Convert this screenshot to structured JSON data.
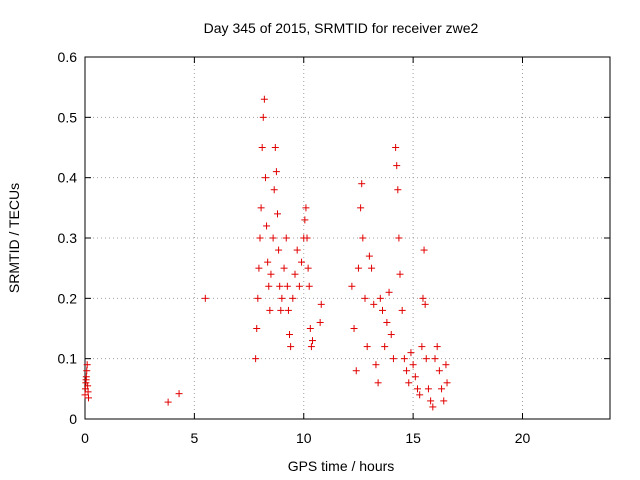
{
  "chart_data": {
    "type": "scatter",
    "title": "Day 345 of 2015, SRMTID for receiver zwe2",
    "xlabel": "GPS time / hours",
    "ylabel": "SRMTID / TECUs",
    "xlim": [
      0,
      24
    ],
    "ylim": [
      0,
      0.6
    ],
    "x_ticks": [
      0,
      5,
      10,
      15,
      20
    ],
    "y_ticks": [
      0,
      0.1,
      0.2,
      0.3,
      0.4,
      0.5,
      0.6
    ],
    "x_tick_labels": [
      "0",
      "5",
      "10",
      "15",
      "20"
    ],
    "y_tick_labels": [
      "0",
      "0.1",
      "0.2",
      "0.3",
      "0.4",
      "0.5",
      "0.6"
    ],
    "grid": true,
    "marker": "+",
    "series": [
      {
        "name": "SRMTID",
        "color": "#e00000",
        "points": [
          [
            0.0,
            0.04
          ],
          [
            0.02,
            0.05
          ],
          [
            0.04,
            0.06
          ],
          [
            0.06,
            0.07
          ],
          [
            0.08,
            0.08
          ],
          [
            0.1,
            0.09
          ],
          [
            0.12,
            0.055
          ],
          [
            0.14,
            0.045
          ],
          [
            0.16,
            0.035
          ],
          [
            0.05,
            0.065
          ],
          [
            3.8,
            0.028
          ],
          [
            4.3,
            0.042
          ],
          [
            5.5,
            0.2
          ],
          [
            7.8,
            0.1
          ],
          [
            7.85,
            0.15
          ],
          [
            7.9,
            0.2
          ],
          [
            7.95,
            0.25
          ],
          [
            8.0,
            0.3
          ],
          [
            8.05,
            0.35
          ],
          [
            8.1,
            0.45
          ],
          [
            8.15,
            0.5
          ],
          [
            8.2,
            0.53
          ],
          [
            8.25,
            0.4
          ],
          [
            8.3,
            0.32
          ],
          [
            8.35,
            0.26
          ],
          [
            8.4,
            0.22
          ],
          [
            8.45,
            0.18
          ],
          [
            8.5,
            0.24
          ],
          [
            8.6,
            0.3
          ],
          [
            8.65,
            0.38
          ],
          [
            8.7,
            0.45
          ],
          [
            8.75,
            0.41
          ],
          [
            8.8,
            0.34
          ],
          [
            8.85,
            0.28
          ],
          [
            8.9,
            0.22
          ],
          [
            8.95,
            0.18
          ],
          [
            9.0,
            0.2
          ],
          [
            9.1,
            0.25
          ],
          [
            9.2,
            0.3
          ],
          [
            9.25,
            0.22
          ],
          [
            9.3,
            0.18
          ],
          [
            9.35,
            0.14
          ],
          [
            9.4,
            0.12
          ],
          [
            9.5,
            0.2
          ],
          [
            9.6,
            0.24
          ],
          [
            9.7,
            0.28
          ],
          [
            9.8,
            0.22
          ],
          [
            9.9,
            0.26
          ],
          [
            10.0,
            0.3
          ],
          [
            10.05,
            0.33
          ],
          [
            10.1,
            0.35
          ],
          [
            10.15,
            0.3
          ],
          [
            10.2,
            0.25
          ],
          [
            10.25,
            0.22
          ],
          [
            10.3,
            0.15
          ],
          [
            10.35,
            0.12
          ],
          [
            10.4,
            0.13
          ],
          [
            10.8,
            0.19
          ],
          [
            10.75,
            0.16
          ],
          [
            12.2,
            0.22
          ],
          [
            12.3,
            0.15
          ],
          [
            12.4,
            0.08
          ],
          [
            12.5,
            0.25
          ],
          [
            12.6,
            0.35
          ],
          [
            12.65,
            0.39
          ],
          [
            12.7,
            0.3
          ],
          [
            12.8,
            0.2
          ],
          [
            12.9,
            0.12
          ],
          [
            13.0,
            0.27
          ],
          [
            13.1,
            0.25
          ],
          [
            13.2,
            0.19
          ],
          [
            13.3,
            0.09
          ],
          [
            13.4,
            0.06
          ],
          [
            13.5,
            0.2
          ],
          [
            13.6,
            0.18
          ],
          [
            13.7,
            0.12
          ],
          [
            13.8,
            0.16
          ],
          [
            13.9,
            0.21
          ],
          [
            14.0,
            0.14
          ],
          [
            14.1,
            0.1
          ],
          [
            14.2,
            0.45
          ],
          [
            14.25,
            0.42
          ],
          [
            14.3,
            0.38
          ],
          [
            14.35,
            0.3
          ],
          [
            14.4,
            0.24
          ],
          [
            14.5,
            0.18
          ],
          [
            14.6,
            0.1
          ],
          [
            14.7,
            0.08
          ],
          [
            14.8,
            0.06
          ],
          [
            14.9,
            0.11
          ],
          [
            15.0,
            0.09
          ],
          [
            15.1,
            0.07
          ],
          [
            15.2,
            0.05
          ],
          [
            15.3,
            0.04
          ],
          [
            15.4,
            0.12
          ],
          [
            15.45,
            0.2
          ],
          [
            15.5,
            0.28
          ],
          [
            15.55,
            0.19
          ],
          [
            15.6,
            0.1
          ],
          [
            15.7,
            0.05
          ],
          [
            15.8,
            0.03
          ],
          [
            15.9,
            0.02
          ],
          [
            16.0,
            0.1
          ],
          [
            16.1,
            0.12
          ],
          [
            16.2,
            0.08
          ],
          [
            16.3,
            0.05
          ],
          [
            16.4,
            0.03
          ],
          [
            16.5,
            0.09
          ],
          [
            16.55,
            0.06
          ]
        ]
      }
    ]
  }
}
